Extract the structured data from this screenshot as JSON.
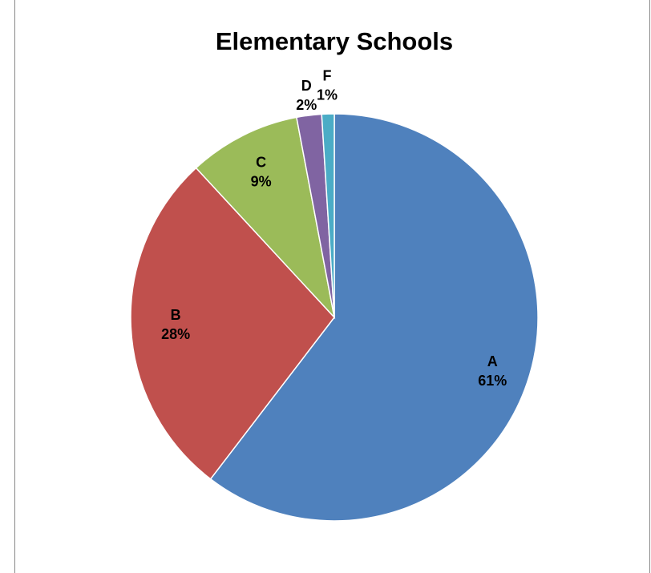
{
  "chart_data": {
    "type": "pie",
    "title": "Elementary Schools",
    "slices": [
      {
        "category": "A",
        "value": 61,
        "label": "61%",
        "color": "#4F81BD"
      },
      {
        "category": "B",
        "value": 28,
        "label": "28%",
        "color": "#C0504D"
      },
      {
        "category": "C",
        "value": 9,
        "label": "9%",
        "color": "#9BBB59"
      },
      {
        "category": "D",
        "value": 2,
        "label": "2%",
        "color": "#8064A2"
      },
      {
        "category": "F",
        "value": 1,
        "label": "1%",
        "color": "#4BACC6"
      }
    ],
    "start_angle": "12 o'clock",
    "direction": "clockwise",
    "legend": "none",
    "data_labels": "category and percent"
  }
}
